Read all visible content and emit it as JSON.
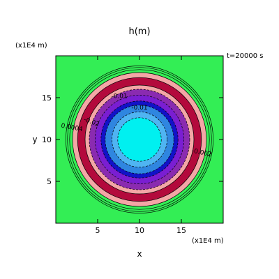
{
  "chart_data": {
    "type": "contour",
    "title": "h(m)",
    "time_label": "t=20000 s",
    "xlabel": "x",
    "ylabel": "y",
    "x_unit": "(x1E4 m)",
    "y_unit": "(x1E4 m)",
    "xlim": [
      0,
      20
    ],
    "ylim": [
      0,
      20
    ],
    "xticks": [
      5,
      10,
      15
    ],
    "yticks": [
      5,
      10,
      15
    ],
    "grid": false,
    "background_color": "#33ee55",
    "bands": [
      {
        "outer_radius": 8.6,
        "color": "#33ee55"
      },
      {
        "outer_radius": 8.0,
        "color": "#f4a6a6"
      },
      {
        "outer_radius": 7.4,
        "color": "#b30a3c"
      },
      {
        "outer_radius": 6.5,
        "color": "#f4a6a6"
      },
      {
        "outer_radius": 6.0,
        "color": "#8a2bb0"
      },
      {
        "outer_radius": 5.3,
        "color": "#7a1ed2"
      },
      {
        "outer_radius": 4.6,
        "color": "#1212c8"
      },
      {
        "outer_radius": 4.1,
        "color": "#2f86e0"
      },
      {
        "outer_radius": 3.3,
        "color": "#4fb4f2"
      },
      {
        "outer_radius": 2.6,
        "color": "#00f0f0"
      }
    ],
    "contour_labels": [
      "-0.01",
      "-0.01",
      "-0.002",
      "0.0004",
      "-0.02"
    ]
  }
}
